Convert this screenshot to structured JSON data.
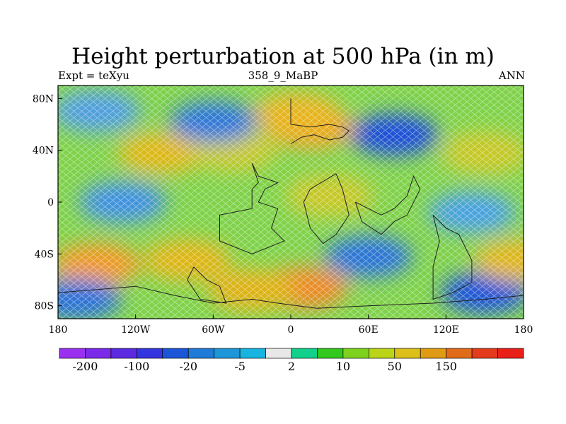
{
  "title": "Height perturbation at 500 hPa (in m)",
  "subtitle_left": "Expt = teXyu",
  "subtitle_center": "358_9_MaBP",
  "subtitle_right": "ANN",
  "map": {
    "projection": "cylindrical-equidistant",
    "lon_range": [
      -180,
      180
    ],
    "lat_range": [
      -90,
      90
    ],
    "x_ticks": [
      {
        "value": -180,
        "label": "180"
      },
      {
        "value": -120,
        "label": "120W"
      },
      {
        "value": -60,
        "label": "60W"
      },
      {
        "value": 0,
        "label": "0"
      },
      {
        "value": 60,
        "label": "60E"
      },
      {
        "value": 120,
        "label": "120E"
      },
      {
        "value": 180,
        "label": "180"
      }
    ],
    "y_ticks": [
      {
        "value": 80,
        "label": "80N"
      },
      {
        "value": 40,
        "label": "40N"
      },
      {
        "value": 0,
        "label": "0"
      },
      {
        "value": -40,
        "label": "40S"
      },
      {
        "value": -80,
        "label": "80S"
      }
    ],
    "background_color": "#7fd24a",
    "field_anomalies": [
      {
        "lon": -100,
        "lat": 38,
        "value": 50,
        "color": "#e0b818"
      },
      {
        "lon": -45,
        "lat": 40,
        "value": 10,
        "color": "#c8c82a"
      },
      {
        "lon": 15,
        "lat": 58,
        "value": 100,
        "color": "#f0a020"
      },
      {
        "lon": 5,
        "lat": 68,
        "value": 50,
        "color": "#e8b41c"
      },
      {
        "lon": -60,
        "lat": 62,
        "value": -20,
        "color": "#2f78d8"
      },
      {
        "lon": -150,
        "lat": 70,
        "value": -5,
        "color": "#4f9fe0"
      },
      {
        "lon": 80,
        "lat": 52,
        "value": -50,
        "color": "#1c50d8"
      },
      {
        "lon": 150,
        "lat": 38,
        "value": 20,
        "color": "#c8c828"
      },
      {
        "lon": -130,
        "lat": 0,
        "value": -10,
        "color": "#3f92e0"
      },
      {
        "lon": 140,
        "lat": -8,
        "value": -5,
        "color": "#4aa2e0"
      },
      {
        "lon": 30,
        "lat": 5,
        "value": 10,
        "color": "#c8c828"
      },
      {
        "lon": -150,
        "lat": -48,
        "value": 100,
        "color": "#f09a20"
      },
      {
        "lon": -80,
        "lat": -45,
        "value": 50,
        "color": "#e0b618"
      },
      {
        "lon": 10,
        "lat": -66,
        "value": 150,
        "color": "#ee8a28"
      },
      {
        "lon": -30,
        "lat": -68,
        "value": 50,
        "color": "#e0b218"
      },
      {
        "lon": 60,
        "lat": -42,
        "value": -20,
        "color": "#2a74d8"
      },
      {
        "lon": 150,
        "lat": -70,
        "value": -50,
        "color": "#1c54d8"
      },
      {
        "lon": -165,
        "lat": -75,
        "value": -20,
        "color": "#2a72d8"
      },
      {
        "lon": 175,
        "lat": -45,
        "value": 50,
        "color": "#e0b61a"
      }
    ],
    "continent_outlines": [
      [
        [
          0,
          80
        ],
        [
          0,
          60
        ],
        [
          15,
          58
        ],
        [
          30,
          60
        ],
        [
          40,
          58
        ],
        [
          45,
          55
        ],
        [
          40,
          50
        ],
        [
          30,
          48
        ],
        [
          18,
          52
        ],
        [
          8,
          50
        ],
        [
          0,
          45
        ]
      ],
      [
        [
          -30,
          30
        ],
        [
          -25,
          20
        ],
        [
          -10,
          15
        ],
        [
          -20,
          10
        ],
        [
          -25,
          0
        ],
        [
          -10,
          -5
        ],
        [
          -15,
          -20
        ],
        [
          -5,
          -30
        ],
        [
          -30,
          -40
        ],
        [
          -55,
          -30
        ],
        [
          -55,
          -10
        ],
        [
          -30,
          -5
        ],
        [
          -30,
          10
        ],
        [
          -25,
          15
        ],
        [
          -30,
          30
        ]
      ],
      [
        [
          35,
          22
        ],
        [
          40,
          10
        ],
        [
          45,
          -10
        ],
        [
          35,
          -25
        ],
        [
          25,
          -32
        ],
        [
          15,
          -20
        ],
        [
          10,
          0
        ],
        [
          15,
          10
        ],
        [
          35,
          22
        ]
      ],
      [
        [
          50,
          0
        ],
        [
          60,
          -5
        ],
        [
          70,
          -10
        ],
        [
          80,
          -5
        ],
        [
          90,
          5
        ],
        [
          95,
          20
        ],
        [
          100,
          10
        ],
        [
          90,
          -10
        ],
        [
          80,
          -15
        ],
        [
          70,
          -25
        ],
        [
          55,
          -15
        ],
        [
          50,
          0
        ]
      ],
      [
        [
          110,
          -10
        ],
        [
          120,
          -20
        ],
        [
          130,
          -25
        ],
        [
          140,
          -45
        ],
        [
          140,
          -62
        ],
        [
          125,
          -70
        ],
        [
          110,
          -75
        ],
        [
          110,
          -50
        ],
        [
          115,
          -30
        ],
        [
          110,
          -10
        ]
      ],
      [
        [
          -180,
          -70
        ],
        [
          -120,
          -65
        ],
        [
          -90,
          -72
        ],
        [
          -60,
          -78
        ],
        [
          -30,
          -75
        ],
        [
          -10,
          -78
        ],
        [
          20,
          -82
        ],
        [
          60,
          -80
        ],
        [
          110,
          -78
        ],
        [
          150,
          -75
        ],
        [
          180,
          -72
        ]
      ],
      [
        [
          -75,
          -50
        ],
        [
          -65,
          -60
        ],
        [
          -55,
          -65
        ],
        [
          -50,
          -78
        ],
        [
          -70,
          -75
        ],
        [
          -80,
          -60
        ],
        [
          -75,
          -50
        ]
      ]
    ]
  },
  "colorbar": {
    "colors": [
      "#9a31f0",
      "#7a2ae8",
      "#5b2ae0",
      "#3535df",
      "#1b56d8",
      "#1f7ad8",
      "#1f96d8",
      "#17b4e0",
      "#e8e8e8",
      "#10d08c",
      "#33c81e",
      "#7ed21e",
      "#bcd418",
      "#dcc019",
      "#e09a14",
      "#e06c1a",
      "#e43b1c",
      "#e82018"
    ],
    "labels": [
      "-200",
      "-100",
      "-20",
      "-5",
      "2",
      "10",
      "50",
      "150"
    ]
  }
}
